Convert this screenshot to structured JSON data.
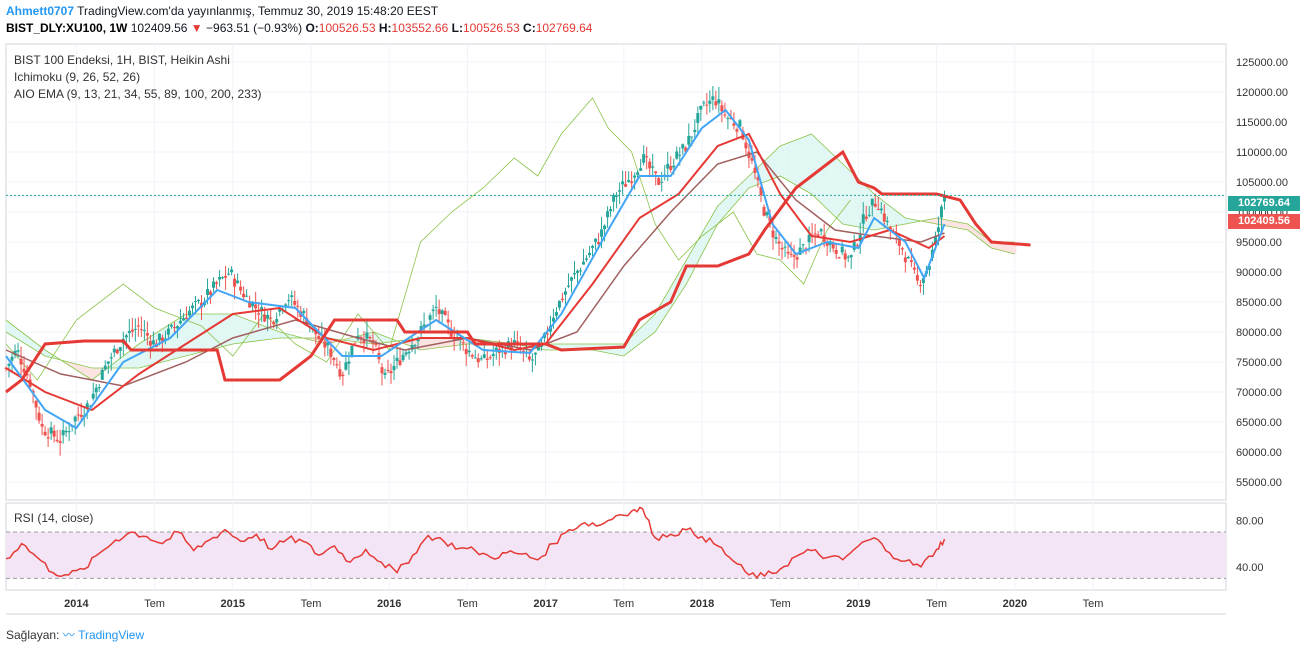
{
  "header": {
    "user": "Ahmett0707",
    "publish_text": "TradingView.com'da yayınlanmış, Temmuz 30, 2019 15:48:20 EEST",
    "symbol": "BIST_DLY:XU100, 1W",
    "last": "102409.56",
    "change_arrow": "▼",
    "change": "−963.51 (−0.93%)",
    "o_label": "O:",
    "o": "100526.53",
    "h_label": "H:",
    "h": "103552.66",
    "l_label": "L:",
    "l": "100526.53",
    "c_label": "C:",
    "c": "102769.64"
  },
  "legend": {
    "main": "BIST 100 Endeksi, 1H, BIST, Heikin Ashi",
    "ichimoku": "Ichimoku (9, 26, 52, 26)",
    "ema": "AIO EMA (9, 13, 21, 34, 55, 89, 100, 200, 233)",
    "rsi": "RSI (14, close)"
  },
  "price_boxes": {
    "close": "102769.64",
    "last": "102409.56"
  },
  "footer": {
    "prefix": "Sağlayan:",
    "brand": "TradingView"
  },
  "colors": {
    "up": "#26a69a",
    "down": "#ef5350",
    "ema_fast": "#42a5f5",
    "ema_red": "#e53935",
    "ema_brown": "#a1605f",
    "cloud_green": "#e0f7f3",
    "cloud_red": "#fbe3e1",
    "span_line": "#8bc34a",
    "rsi_line": "#e53935",
    "rsi_band": "#f3e5f5"
  },
  "chart_data": [
    {
      "type": "candlestick",
      "title": "BIST 100 Endeksi, 1H, BIST, Heikin Ashi",
      "ylim": [
        52000,
        128000
      ],
      "y_ticks": [
        55000,
        60000,
        65000,
        70000,
        75000,
        80000,
        85000,
        90000,
        95000,
        100000,
        105000,
        110000,
        115000,
        120000,
        125000
      ],
      "y_tick_labels": [
        "55000.00",
        "60000.00",
        "65000.00",
        "70000.00",
        "75000.00",
        "80000.00",
        "85000.00",
        "90000.00",
        "95000.00",
        "100000.00",
        "105000.00",
        "110000.00",
        "115000.00",
        "120000.00",
        "125000.00"
      ],
      "x_range": [
        2013.55,
        2021.35
      ],
      "x_ticks": [
        2014.0,
        2014.5,
        2015.0,
        2015.5,
        2016.0,
        2016.5,
        2017.0,
        2017.5,
        2018.0,
        2018.5,
        2019.0,
        2019.5,
        2020.0,
        2020.5
      ],
      "x_tick_labels": [
        "2014",
        "Tem",
        "2015",
        "Tem",
        "2016",
        "Tem",
        "2017",
        "Tem",
        "2018",
        "Tem",
        "2019",
        "Tem",
        "2020",
        "Tem"
      ],
      "price_points": [
        [
          2013.55,
          74000
        ],
        [
          2013.62,
          77000
        ],
        [
          2013.7,
          72000
        ],
        [
          2013.78,
          64000
        ],
        [
          2013.9,
          62000
        ],
        [
          2014.0,
          66000
        ],
        [
          2014.08,
          68000
        ],
        [
          2014.2,
          75000
        ],
        [
          2014.3,
          79000
        ],
        [
          2014.4,
          81000
        ],
        [
          2014.5,
          78000
        ],
        [
          2014.6,
          80000
        ],
        [
          2014.7,
          83000
        ],
        [
          2014.8,
          85000
        ],
        [
          2014.9,
          88000
        ],
        [
          2014.98,
          90000
        ],
        [
          2015.05,
          87000
        ],
        [
          2015.15,
          84000
        ],
        [
          2015.25,
          82000
        ],
        [
          2015.35,
          86000
        ],
        [
          2015.45,
          83000
        ],
        [
          2015.55,
          79000
        ],
        [
          2015.62,
          77000
        ],
        [
          2015.7,
          73000
        ],
        [
          2015.8,
          80000
        ],
        [
          2015.9,
          78000
        ],
        [
          2015.97,
          72000
        ],
        [
          2016.08,
          76000
        ],
        [
          2016.2,
          80000
        ],
        [
          2016.3,
          84000
        ],
        [
          2016.4,
          80000
        ],
        [
          2016.5,
          77000
        ],
        [
          2016.6,
          75000
        ],
        [
          2016.7,
          77000
        ],
        [
          2016.8,
          78000
        ],
        [
          2016.9,
          75000
        ],
        [
          2016.97,
          77000
        ],
        [
          2017.05,
          83000
        ],
        [
          2017.15,
          88000
        ],
        [
          2017.25,
          92000
        ],
        [
          2017.35,
          96000
        ],
        [
          2017.45,
          103000
        ],
        [
          2017.55,
          106000
        ],
        [
          2017.62,
          109000
        ],
        [
          2017.72,
          105000
        ],
        [
          2017.8,
          108000
        ],
        [
          2017.9,
          111000
        ],
        [
          2018.0,
          117000
        ],
        [
          2018.08,
          119000
        ],
        [
          2018.15,
          116000
        ],
        [
          2018.25,
          114000
        ],
        [
          2018.32,
          108000
        ],
        [
          2018.4,
          100000
        ],
        [
          2018.48,
          95000
        ],
        [
          2018.56,
          92000
        ],
        [
          2018.65,
          94000
        ],
        [
          2018.75,
          97000
        ],
        [
          2018.85,
          94000
        ],
        [
          2018.95,
          92000
        ],
        [
          2019.05,
          100000
        ],
        [
          2019.12,
          102000
        ],
        [
          2019.2,
          97000
        ],
        [
          2019.28,
          94000
        ],
        [
          2019.38,
          88000
        ],
        [
          2019.45,
          91000
        ],
        [
          2019.5,
          96000
        ],
        [
          2019.55,
          102769.64
        ]
      ],
      "ema_fast": [
        [
          2013.55,
          76000
        ],
        [
          2013.8,
          67000
        ],
        [
          2014.0,
          64000
        ],
        [
          2014.3,
          75000
        ],
        [
          2014.6,
          79000
        ],
        [
          2014.9,
          87000
        ],
        [
          2015.1,
          85000
        ],
        [
          2015.4,
          84000
        ],
        [
          2015.7,
          76000
        ],
        [
          2015.95,
          76000
        ],
        [
          2016.3,
          82000
        ],
        [
          2016.6,
          77000
        ],
        [
          2016.9,
          76500
        ],
        [
          2017.1,
          83000
        ],
        [
          2017.4,
          97000
        ],
        [
          2017.6,
          106000
        ],
        [
          2017.8,
          106000
        ],
        [
          2018.0,
          114000
        ],
        [
          2018.15,
          117000
        ],
        [
          2018.3,
          112000
        ],
        [
          2018.45,
          98000
        ],
        [
          2018.6,
          93000
        ],
        [
          2018.8,
          95000
        ],
        [
          2019.0,
          94000
        ],
        [
          2019.1,
          99000
        ],
        [
          2019.3,
          95000
        ],
        [
          2019.42,
          89000
        ],
        [
          2019.55,
          98000
        ]
      ],
      "ema_red": [
        [
          2013.55,
          74000
        ],
        [
          2013.8,
          70000
        ],
        [
          2014.1,
          67000
        ],
        [
          2014.4,
          73000
        ],
        [
          2014.7,
          78000
        ],
        [
          2015.0,
          83000
        ],
        [
          2015.3,
          84000
        ],
        [
          2015.6,
          79000
        ],
        [
          2015.9,
          77000
        ],
        [
          2016.2,
          79000
        ],
        [
          2016.5,
          79000
        ],
        [
          2016.8,
          77000
        ],
        [
          2017.0,
          78000
        ],
        [
          2017.3,
          88000
        ],
        [
          2017.6,
          99000
        ],
        [
          2017.85,
          103000
        ],
        [
          2018.1,
          111000
        ],
        [
          2018.3,
          113000
        ],
        [
          2018.5,
          103000
        ],
        [
          2018.7,
          96000
        ],
        [
          2018.95,
          95000
        ],
        [
          2019.2,
          97000
        ],
        [
          2019.45,
          94000
        ],
        [
          2019.55,
          96000
        ]
      ],
      "ema_brown": [
        [
          2013.55,
          77000
        ],
        [
          2013.9,
          73000
        ],
        [
          2014.3,
          71000
        ],
        [
          2014.7,
          75000
        ],
        [
          2015.0,
          79000
        ],
        [
          2015.4,
          82000
        ],
        [
          2015.8,
          79000
        ],
        [
          2016.1,
          77000
        ],
        [
          2016.5,
          79000
        ],
        [
          2016.9,
          77000
        ],
        [
          2017.2,
          80000
        ],
        [
          2017.5,
          91000
        ],
        [
          2017.8,
          100000
        ],
        [
          2018.1,
          108000
        ],
        [
          2018.35,
          110000
        ],
        [
          2018.6,
          102000
        ],
        [
          2018.85,
          97000
        ],
        [
          2019.1,
          96000
        ],
        [
          2019.4,
          95000
        ],
        [
          2019.55,
          96500
        ]
      ],
      "kijun": [
        [
          2013.55,
          70000
        ],
        [
          2013.65,
          72000
        ],
        [
          2013.8,
          78000
        ],
        [
          2014.05,
          78500
        ],
        [
          2014.3,
          78500
        ],
        [
          2014.35,
          77000
        ],
        [
          2014.6,
          77000
        ],
        [
          2014.9,
          77000
        ],
        [
          2014.95,
          72000
        ],
        [
          2015.3,
          72000
        ],
        [
          2015.4,
          74000
        ],
        [
          2015.5,
          76000
        ],
        [
          2015.65,
          82000
        ],
        [
          2016.05,
          82000
        ],
        [
          2016.1,
          80000
        ],
        [
          2016.5,
          80000
        ],
        [
          2016.55,
          78000
        ],
        [
          2017.0,
          78000
        ],
        [
          2017.1,
          77000
        ],
        [
          2017.5,
          77500
        ],
        [
          2017.6,
          82000
        ],
        [
          2017.8,
          85000
        ],
        [
          2017.9,
          91000
        ],
        [
          2018.1,
          91000
        ],
        [
          2018.3,
          93000
        ],
        [
          2018.4,
          97000
        ],
        [
          2018.6,
          104000
        ],
        [
          2018.9,
          110000
        ],
        [
          2019.0,
          105000
        ],
        [
          2019.1,
          104000
        ],
        [
          2019.15,
          103000
        ],
        [
          2019.3,
          103000
        ],
        [
          2019.5,
          103000
        ],
        [
          2019.65,
          102000
        ],
        [
          2019.75,
          98000
        ],
        [
          2019.85,
          95000
        ],
        [
          2020.1,
          94500
        ]
      ],
      "span_a": [
        [
          2013.55,
          82000
        ],
        [
          2013.8,
          77000
        ],
        [
          2014.1,
          72000
        ],
        [
          2014.4,
          78000
        ],
        [
          2014.7,
          83000
        ],
        [
          2015.0,
          83000
        ],
        [
          2015.3,
          80000
        ],
        [
          2015.6,
          78000
        ],
        [
          2015.9,
          80000
        ],
        [
          2016.2,
          77000
        ],
        [
          2016.5,
          78000
        ],
        [
          2016.8,
          78000
        ],
        [
          2017.0,
          78000
        ],
        [
          2017.3,
          78000
        ],
        [
          2017.5,
          78000
        ],
        [
          2017.7,
          83000
        ],
        [
          2017.9,
          92000
        ],
        [
          2018.1,
          101000
        ],
        [
          2018.3,
          106000
        ],
        [
          2018.5,
          111000
        ],
        [
          2018.7,
          113000
        ],
        [
          2018.9,
          108000
        ],
        [
          2019.1,
          103000
        ],
        [
          2019.3,
          99000
        ],
        [
          2019.5,
          98000
        ],
        [
          2019.7,
          97000
        ],
        [
          2019.85,
          94000
        ],
        [
          2020.0,
          93000
        ]
      ],
      "span_b": [
        [
          2013.55,
          80000
        ],
        [
          2013.8,
          76000
        ],
        [
          2014.1,
          74000
        ],
        [
          2014.4,
          74000
        ],
        [
          2014.7,
          76000
        ],
        [
          2015.0,
          78000
        ],
        [
          2015.3,
          79000
        ],
        [
          2015.6,
          79000
        ],
        [
          2015.9,
          78000
        ],
        [
          2016.2,
          79000
        ],
        [
          2016.5,
          79000
        ],
        [
          2016.8,
          78000
        ],
        [
          2017.0,
          77000
        ],
        [
          2017.3,
          77000
        ],
        [
          2017.5,
          76000
        ],
        [
          2017.7,
          80000
        ],
        [
          2017.9,
          88000
        ],
        [
          2018.1,
          98000
        ],
        [
          2018.3,
          104000
        ],
        [
          2018.5,
          106000
        ],
        [
          2018.7,
          103000
        ],
        [
          2018.9,
          98000
        ],
        [
          2019.1,
          97000
        ],
        [
          2019.3,
          98000
        ],
        [
          2019.5,
          99000
        ],
        [
          2019.7,
          98000
        ],
        [
          2019.85,
          95000
        ],
        [
          2020.0,
          95000
        ]
      ],
      "chikou": [
        [
          2013.55,
          78000
        ],
        [
          2013.75,
          72000
        ],
        [
          2014.0,
          82000
        ],
        [
          2014.3,
          88000
        ],
        [
          2014.5,
          84000
        ],
        [
          2014.8,
          81000
        ],
        [
          2015.0,
          76000
        ],
        [
          2015.2,
          83000
        ],
        [
          2015.4,
          78000
        ],
        [
          2015.6,
          75000
        ],
        [
          2015.8,
          83000
        ],
        [
          2016.0,
          77000
        ],
        [
          2016.2,
          95000
        ],
        [
          2016.4,
          100000
        ],
        [
          2016.6,
          104000
        ],
        [
          2016.8,
          109000
        ],
        [
          2016.95,
          106000
        ],
        [
          2017.1,
          113000
        ],
        [
          2017.3,
          119000
        ],
        [
          2017.4,
          114000
        ],
        [
          2017.55,
          110000
        ],
        [
          2017.7,
          98000
        ],
        [
          2017.85,
          92000
        ],
        [
          2018.0,
          96000
        ],
        [
          2018.2,
          100000
        ],
        [
          2018.35,
          93000
        ],
        [
          2018.5,
          92000
        ],
        [
          2018.65,
          88000
        ],
        [
          2018.8,
          97000
        ],
        [
          2018.95,
          102000
        ]
      ]
    },
    {
      "type": "line",
      "title": "RSI (14, close)",
      "ylim": [
        20,
        95
      ],
      "y_ticks": [
        40,
        80
      ],
      "y_tick_labels": [
        "40.00",
        "80.00"
      ],
      "band": [
        30,
        70
      ],
      "x": [
        2013.55,
        2013.65,
        2013.75,
        2013.85,
        2013.95,
        2014.05,
        2014.15,
        2014.25,
        2014.35,
        2014.45,
        2014.55,
        2014.65,
        2014.75,
        2014.85,
        2014.95,
        2015.05,
        2015.15,
        2015.25,
        2015.35,
        2015.45,
        2015.55,
        2015.65,
        2015.75,
        2015.85,
        2015.95,
        2016.05,
        2016.15,
        2016.25,
        2016.35,
        2016.45,
        2016.55,
        2016.65,
        2016.75,
        2016.85,
        2016.95,
        2017.05,
        2017.15,
        2017.25,
        2017.35,
        2017.45,
        2017.55,
        2017.62,
        2017.7,
        2017.8,
        2017.9,
        2018.0,
        2018.1,
        2018.2,
        2018.3,
        2018.4,
        2018.5,
        2018.6,
        2018.7,
        2018.8,
        2018.9,
        2019.0,
        2019.1,
        2019.2,
        2019.3,
        2019.4,
        2019.5,
        2019.55
      ],
      "values": [
        47,
        60,
        48,
        35,
        33,
        38,
        52,
        63,
        70,
        66,
        60,
        70,
        54,
        63,
        72,
        62,
        68,
        55,
        64,
        62,
        50,
        58,
        44,
        55,
        44,
        35,
        50,
        67,
        62,
        56,
        54,
        48,
        52,
        51,
        46,
        60,
        72,
        78,
        76,
        84,
        88,
        90,
        65,
        68,
        72,
        66,
        58,
        45,
        33,
        32,
        38,
        49,
        54,
        48,
        46,
        58,
        65,
        52,
        45,
        40,
        55,
        64
      ]
    }
  ]
}
